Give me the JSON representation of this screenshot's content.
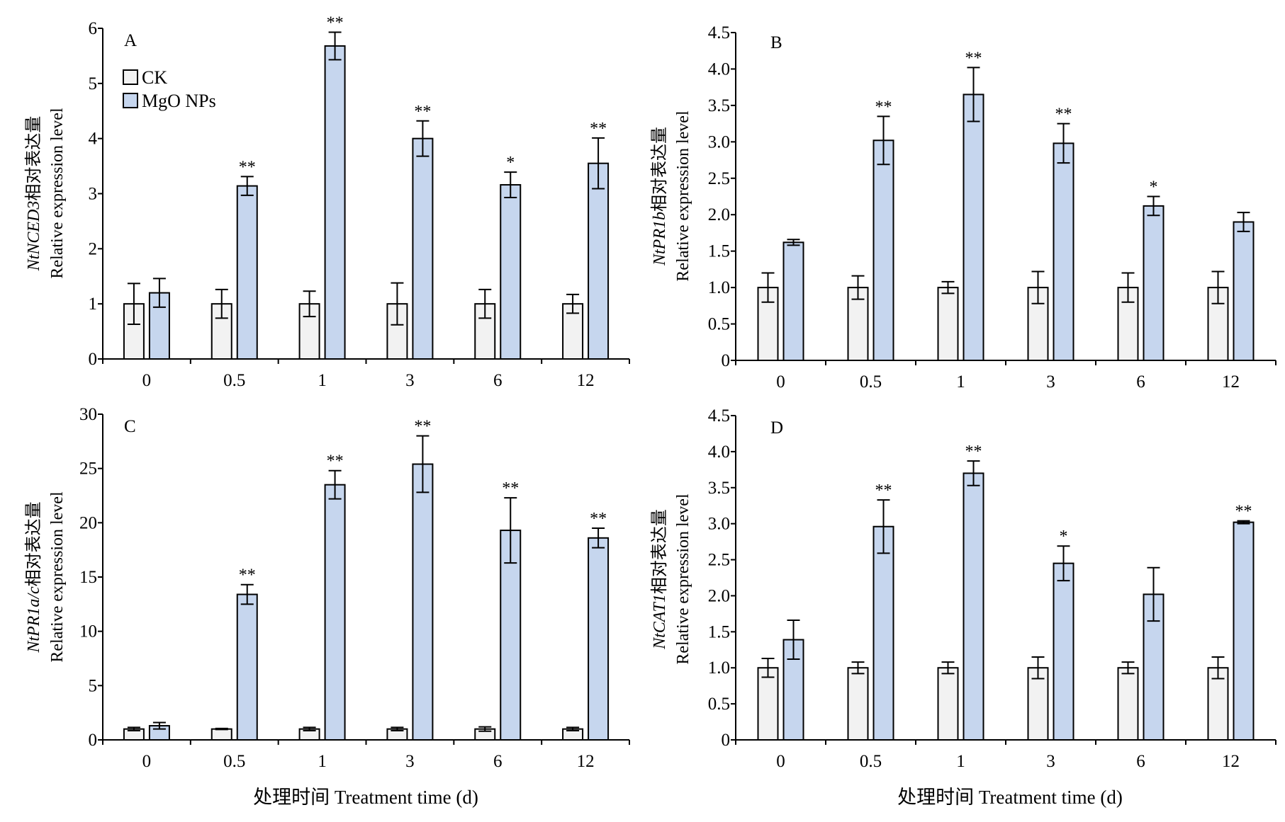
{
  "colors": {
    "ck": "#f2f2f2",
    "mgo": "#c6d6ee",
    "stroke": "#000000"
  },
  "legend": {
    "placement": "top-left",
    "ck_label": "CK",
    "mgo_label": "MgO NPs"
  },
  "xlabel": "处理时间 Treatment time (d)",
  "chart_data": [
    {
      "type": "bar",
      "panel": "A",
      "ylabel_gene": "NtNCED3",
      "ylabel_cn": "相对表达量",
      "ylabel_en": "Relative expression level",
      "categories": [
        "0",
        "0.5",
        "1",
        "3",
        "6",
        "12"
      ],
      "ylim": [
        0,
        6
      ],
      "yticks": [
        "0",
        "1",
        "2",
        "3",
        "4",
        "5",
        "6"
      ],
      "series": [
        {
          "name": "CK",
          "values": [
            1.0,
            1.0,
            1.0,
            1.0,
            1.0,
            1.0
          ],
          "errors": [
            0.37,
            0.26,
            0.23,
            0.38,
            0.26,
            0.17
          ]
        },
        {
          "name": "MgO NPs",
          "values": [
            1.2,
            3.14,
            5.68,
            4.0,
            3.16,
            3.55
          ],
          "errors": [
            0.26,
            0.17,
            0.25,
            0.32,
            0.23,
            0.46
          ]
        }
      ],
      "significance": [
        "",
        "**",
        "**",
        "**",
        "*",
        "**"
      ]
    },
    {
      "type": "bar",
      "panel": "B",
      "ylabel_gene": "NtPR1b",
      "ylabel_cn": "相对表达量",
      "ylabel_en": "Relative expression level",
      "categories": [
        "0",
        "0.5",
        "1",
        "3",
        "6",
        "12"
      ],
      "ylim": [
        0,
        4.5
      ],
      "yticks": [
        "0",
        "0.5",
        "1.0",
        "1.5",
        "2.0",
        "2.5",
        "3.0",
        "3.5",
        "4.0",
        "4.5"
      ],
      "series": [
        {
          "name": "CK",
          "values": [
            1.0,
            1.0,
            1.0,
            1.0,
            1.0,
            1.0
          ],
          "errors": [
            0.2,
            0.16,
            0.08,
            0.22,
            0.2,
            0.22
          ]
        },
        {
          "name": "MgO NPs",
          "values": [
            1.62,
            3.02,
            3.65,
            2.98,
            2.12,
            1.9
          ],
          "errors": [
            0.04,
            0.33,
            0.37,
            0.27,
            0.13,
            0.13
          ]
        }
      ],
      "significance": [
        "",
        "**",
        "**",
        "**",
        "*",
        ""
      ]
    },
    {
      "type": "bar",
      "panel": "C",
      "ylabel_gene": "NtPR1a/c",
      "ylabel_cn": "相对表达量",
      "ylabel_en": "Relative expression level",
      "categories": [
        "0",
        "0.5",
        "1",
        "3",
        "6",
        "12"
      ],
      "ylim": [
        0,
        30
      ],
      "yticks": [
        "0",
        "5",
        "10",
        "15",
        "20",
        "25",
        "30"
      ],
      "series": [
        {
          "name": "CK",
          "values": [
            1.0,
            1.0,
            1.0,
            1.0,
            1.0,
            1.0
          ],
          "errors": [
            0.15,
            0.05,
            0.15,
            0.15,
            0.2,
            0.15
          ]
        },
        {
          "name": "MgO NPs",
          "values": [
            1.3,
            13.4,
            23.5,
            25.4,
            19.3,
            18.6
          ],
          "errors": [
            0.3,
            0.9,
            1.3,
            2.6,
            3.0,
            0.9
          ]
        }
      ],
      "significance": [
        "",
        "**",
        "**",
        "**",
        "**",
        "**"
      ]
    },
    {
      "type": "bar",
      "panel": "D",
      "ylabel_gene": "NtCAT1",
      "ylabel_cn": "相对表达量",
      "ylabel_en": "Relative expression level",
      "categories": [
        "0",
        "0.5",
        "1",
        "3",
        "6",
        "12"
      ],
      "ylim": [
        0,
        4.5
      ],
      "yticks": [
        "0",
        "0.5",
        "1.0",
        "1.5",
        "2.0",
        "2.5",
        "3.0",
        "3.5",
        "4.0",
        "4.5"
      ],
      "series": [
        {
          "name": "CK",
          "values": [
            1.0,
            1.0,
            1.0,
            1.0,
            1.0,
            1.0
          ],
          "errors": [
            0.13,
            0.08,
            0.08,
            0.15,
            0.08,
            0.15
          ]
        },
        {
          "name": "MgO NPs",
          "values": [
            1.39,
            2.96,
            3.7,
            2.45,
            2.02,
            3.02
          ],
          "errors": [
            0.27,
            0.37,
            0.17,
            0.24,
            0.37,
            0.02
          ]
        }
      ],
      "significance": [
        "",
        "**",
        "**",
        "*",
        "",
        "**"
      ]
    }
  ]
}
